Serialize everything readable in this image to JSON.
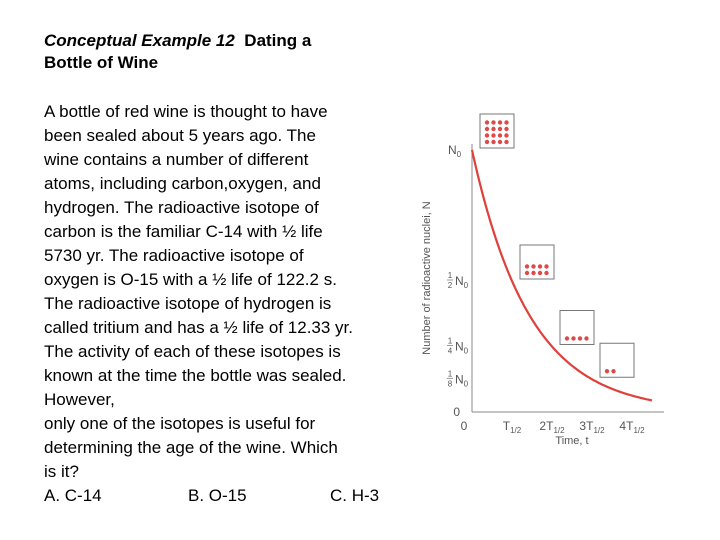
{
  "title": {
    "italic": "Conceptual Example 12",
    "rest_line1": "  Dating a",
    "line2": "Bottle of Wine"
  },
  "body_lines": [
    "A bottle of red wine is thought to have",
    "been sealed about 5 years ago.  The",
    "wine contains a number of different",
    "atoms, including carbon,oxygen, and",
    "hydrogen.  The radioactive isotope of",
    "carbon is the familiar C-14 with ½ life",
    "5730 yr.  The radioactive isotope of",
    "oxygen is O-15 with a ½ life of 122.2 s.",
    "The radioactive isotope of hydrogen is",
    "called tritium and has a ½ life of 12.33 yr.",
    "The activity of each of these isotopes is",
    "known at the time the bottle was sealed.",
    "However,",
    "only one of the isotopes is useful for",
    "determining the age of the wine.  Which",
    "is it?"
  ],
  "answers": [
    "A.  C-14",
    "B. O-15",
    "C. H-3"
  ],
  "chart_data": {
    "type": "line",
    "title": "",
    "xlabel": "Time, t",
    "ylabel": "Number of radioactive nuclei, N",
    "x_ticks": [
      "0",
      "T1/2",
      "2T1/2",
      "3T1/2",
      "4T1/2"
    ],
    "y_ticks": [
      "0",
      "1/8 N0",
      "1/4 N0",
      "1/2 N0",
      "N0"
    ],
    "series": [
      {
        "x": [
          0,
          1,
          2,
          3,
          4,
          4.5
        ],
        "y": [
          1,
          0.5,
          0.25,
          0.125,
          0.0625,
          0.0442
        ]
      }
    ],
    "grid": false,
    "curve_color": "#e0403a",
    "dot_color": "#dd4a4a",
    "dot_boxes": [
      {
        "t": 0,
        "fraction": 1,
        "dots": 16
      },
      {
        "t": 1,
        "fraction": 0.5,
        "dots": 8
      },
      {
        "t": 2,
        "fraction": 0.25,
        "dots": 4
      },
      {
        "t": 3,
        "fraction": 0.125,
        "dots": 2
      }
    ]
  }
}
